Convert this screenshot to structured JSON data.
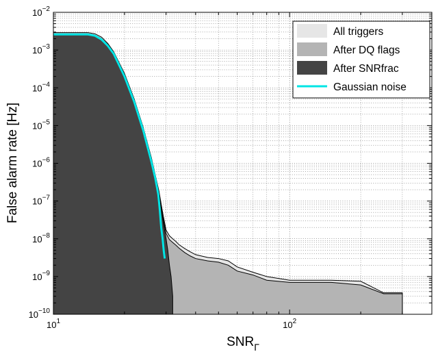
{
  "chart_data": {
    "type": "area",
    "xscale": "log",
    "yscale": "log",
    "xlim": [
      10,
      400
    ],
    "ylim": [
      1e-10,
      0.01
    ],
    "grid": true,
    "xlabel": "SNR",
    "xlabel_sub": "Γ",
    "ylabel": "False alarm rate [Hz]",
    "x_ticks": [
      {
        "value": 10,
        "base": "10",
        "exp": "1"
      },
      {
        "value": 100,
        "base": "10",
        "exp": "2"
      }
    ],
    "y_ticks": [
      {
        "value": 1e-10,
        "base": "10",
        "exp": "−10"
      },
      {
        "value": 1e-09,
        "base": "10",
        "exp": "−9"
      },
      {
        "value": 1e-08,
        "base": "10",
        "exp": "−8"
      },
      {
        "value": 1e-07,
        "base": "10",
        "exp": "−7"
      },
      {
        "value": 1e-06,
        "base": "10",
        "exp": "−6"
      },
      {
        "value": 1e-05,
        "base": "10",
        "exp": "−5"
      },
      {
        "value": 0.0001,
        "base": "10",
        "exp": "−4"
      },
      {
        "value": 0.001,
        "base": "10",
        "exp": "−3"
      },
      {
        "value": 0.01,
        "base": "10",
        "exp": "−2"
      }
    ],
    "legend_position": "top-right",
    "series": [
      {
        "name": "All triggers",
        "kind": "area",
        "color": "#e6e6e6",
        "x": [
          10,
          14,
          15,
          16,
          17,
          18,
          20,
          22,
          24,
          26,
          28,
          29,
          30,
          31,
          32,
          33,
          34,
          36,
          38,
          40,
          45,
          50,
          55,
          60,
          70,
          80,
          100,
          120,
          150,
          200,
          250,
          300
        ],
        "y": [
          0.0029,
          0.0029,
          0.0027,
          0.0022,
          0.0015,
          0.0009,
          0.00024,
          5e-05,
          9e-06,
          1.4e-06,
          1.8e-07,
          5e-08,
          1.7e-08,
          1.2e-08,
          1e-08,
          8.5e-09,
          7e-09,
          5.5e-09,
          4.5e-09,
          3.8e-09,
          3.2e-09,
          3e-09,
          2.6e-09,
          1.8e-09,
          1.3e-09,
          1e-09,
          8e-10,
          8e-10,
          8e-10,
          7.5e-10,
          3.7e-10,
          3.7e-10
        ]
      },
      {
        "name": "After DQ flags",
        "kind": "area",
        "color": "#b4b4b4",
        "x": [
          10,
          14,
          15,
          16,
          17,
          18,
          20,
          22,
          24,
          26,
          28,
          29,
          30,
          31,
          32,
          33,
          34,
          36,
          38,
          40,
          45,
          50,
          55,
          60,
          70,
          80,
          100,
          120,
          150,
          200,
          250,
          300
        ],
        "y": [
          0.0027,
          0.0027,
          0.0025,
          0.002,
          0.0014,
          0.00085,
          0.00022,
          4.5e-05,
          8e-06,
          1.2e-06,
          1.5e-07,
          4e-08,
          1.4e-08,
          9.5e-09,
          8e-09,
          6.8e-09,
          5.7e-09,
          4.3e-09,
          3.5e-09,
          3e-09,
          2.6e-09,
          2.4e-09,
          2e-09,
          1.4e-09,
          1.1e-09,
          8e-10,
          7e-10,
          7e-10,
          7e-10,
          6e-10,
          3.5e-10,
          3.5e-10
        ]
      },
      {
        "name": "After SNRfrac",
        "kind": "area",
        "color": "#444444",
        "x": [
          10,
          14,
          15,
          16,
          17,
          18,
          20,
          22,
          24,
          26,
          28,
          29,
          30,
          30.5,
          31,
          31.5,
          32
        ],
        "y": [
          0.0027,
          0.0027,
          0.0025,
          0.002,
          0.0014,
          0.00085,
          0.00022,
          4.5e-05,
          8e-06,
          1.2e-06,
          1.5e-07,
          3.5e-08,
          1e-08,
          5e-09,
          2e-09,
          1e-09,
          3e-10
        ]
      },
      {
        "name": "Gaussian noise",
        "kind": "line",
        "color": "#00e5e5",
        "x": [
          10,
          14,
          15,
          16,
          17,
          18,
          20,
          22,
          24,
          26,
          27,
          27.8,
          28.2,
          28.6,
          29,
          29.3,
          29.6
        ],
        "y": [
          0.0026,
          0.0026,
          0.0024,
          0.0019,
          0.0013,
          0.0008,
          0.0002,
          4.2e-05,
          7.5e-06,
          1.1e-06,
          4e-07,
          1.5e-07,
          6e-08,
          2e-08,
          1e-08,
          5e-09,
          3e-09
        ]
      }
    ]
  }
}
